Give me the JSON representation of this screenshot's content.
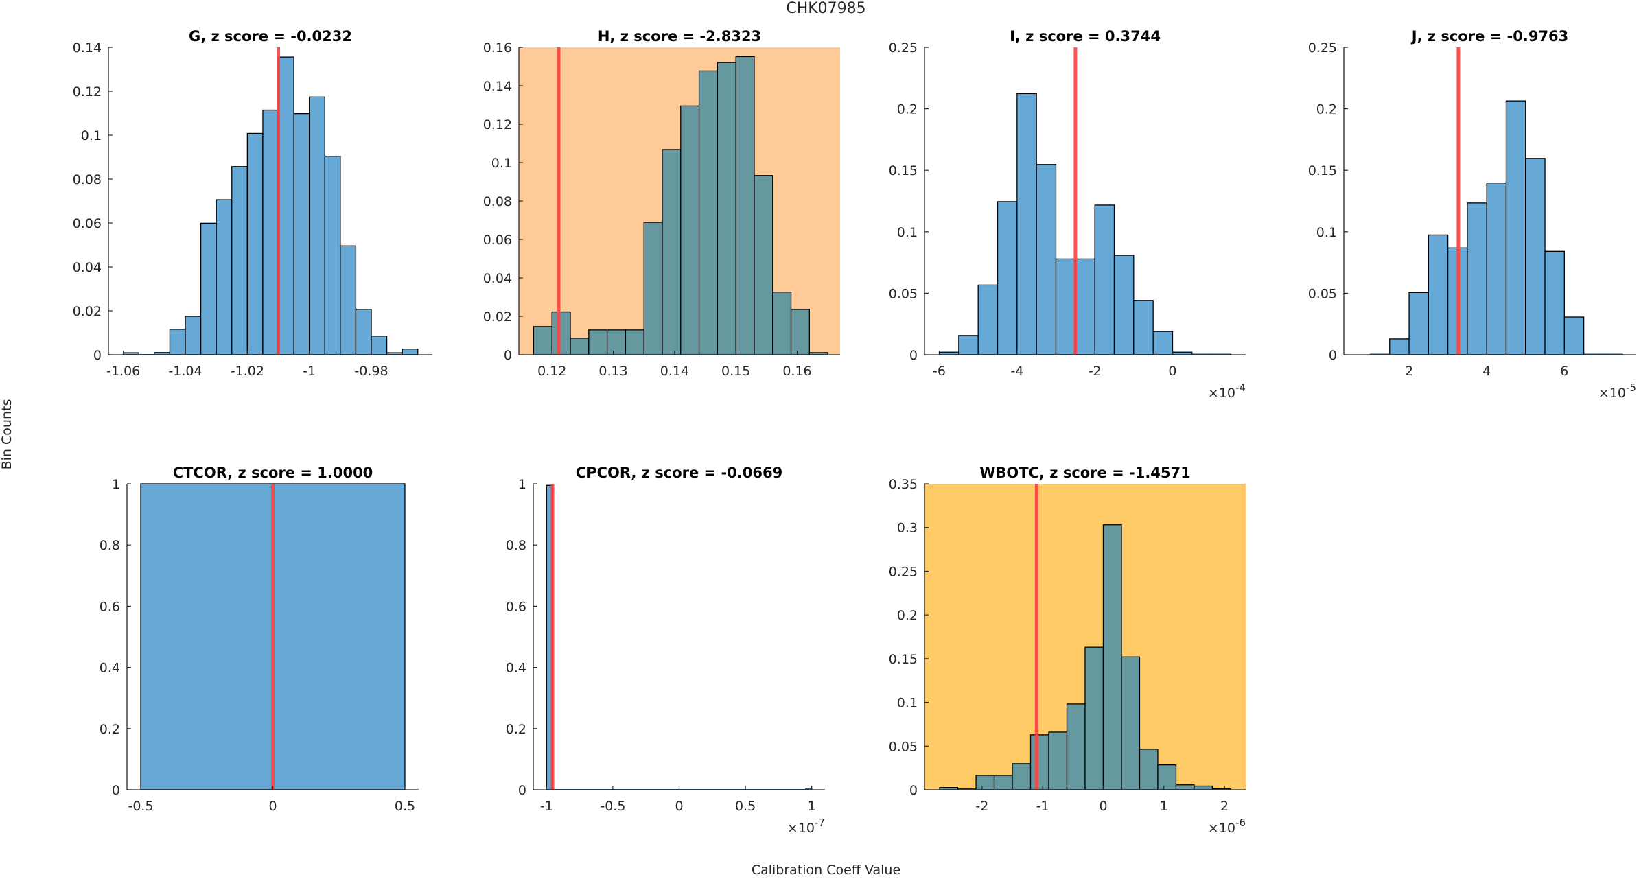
{
  "figure": {
    "suptitle": "CHK07985",
    "ylabel": "Bin Counts",
    "xlabel": "Calibration Coeff Value"
  },
  "colors": {
    "bar_fill": "#66a9d6",
    "bar_fill_on_warning": "#6698a0",
    "bar_edge": "#000000",
    "marker_line": "#ff4040",
    "bg_normal": "#ffffff",
    "bg_orange": "#fecb98",
    "bg_yellow": "#fecb66",
    "axis": "#262626"
  },
  "chart_data": [
    {
      "type": "bar",
      "title": "G, z score = -0.0232",
      "background": "bg_normal",
      "bin_edges": [
        -1.06,
        -1.055,
        -1.05,
        -1.045,
        -1.04,
        -1.035,
        -1.03,
        -1.025,
        -1.02,
        -1.015,
        -1.01,
        -1.005,
        -1.0,
        -0.995,
        -0.99,
        -0.985,
        -0.98,
        -0.975,
        -0.97,
        -0.965
      ],
      "values": [
        0.0009,
        0.0,
        0.001,
        0.0116,
        0.0175,
        0.0599,
        0.0706,
        0.0857,
        0.1008,
        0.1114,
        0.1356,
        0.1098,
        0.1174,
        0.0904,
        0.0496,
        0.0207,
        0.0085,
        0.0009,
        0.0026
      ],
      "marker_x": -1.01,
      "xlim": [
        -1.0648,
        -0.9603
      ],
      "ylim": [
        0,
        0.14
      ],
      "xticks": [
        -1.06,
        -1.04,
        -1.02,
        -1,
        -0.98
      ],
      "xtick_labels": [
        "-1.06",
        "-1.04",
        "-1.02",
        "-1",
        "-0.98"
      ],
      "yticks": [
        0,
        0.02,
        0.04,
        0.06,
        0.08,
        0.1,
        0.12,
        0.14
      ],
      "ytick_labels": [
        "0",
        "0.02",
        "0.04",
        "0.06",
        "0.08",
        "0.1",
        "0.12",
        "0.14"
      ],
      "exponent_label": "",
      "xlabel": "",
      "ylabel": ""
    },
    {
      "type": "bar",
      "title": "H, z score = -2.8323",
      "background": "bg_orange",
      "bin_edges": [
        0.117,
        0.12,
        0.123,
        0.126,
        0.129,
        0.132,
        0.135,
        0.138,
        0.141,
        0.144,
        0.147,
        0.15,
        0.153,
        0.156,
        0.159,
        0.162,
        0.165
      ],
      "values": [
        0.0147,
        0.0223,
        0.0086,
        0.0129,
        0.0129,
        0.0129,
        0.0689,
        0.1068,
        0.1295,
        0.1477,
        0.1521,
        0.1552,
        0.0933,
        0.0326,
        0.0236,
        0.0011
      ],
      "marker_x": 0.1211,
      "xlim": [
        0.1146,
        0.167
      ],
      "ylim": [
        0,
        0.16
      ],
      "xticks": [
        0.12,
        0.13,
        0.14,
        0.15,
        0.16
      ],
      "xtick_labels": [
        "0.12",
        "0.13",
        "0.14",
        "0.15",
        "0.16"
      ],
      "yticks": [
        0,
        0.02,
        0.04,
        0.06,
        0.08,
        0.1,
        0.12,
        0.14,
        0.16
      ],
      "ytick_labels": [
        "0",
        "0.02",
        "0.04",
        "0.06",
        "0.08",
        "0.1",
        "0.12",
        "0.14",
        "0.16"
      ],
      "exponent_label": "",
      "xlabel": "",
      "ylabel": ""
    },
    {
      "type": "bar",
      "title": "I, z score = 0.3744",
      "background": "bg_normal",
      "bin_edges": [
        -6.0,
        -5.5,
        -5.0,
        -4.5,
        -4.0,
        -3.5,
        -3.0,
        -2.5,
        -2.0,
        -1.5,
        -1.0,
        -0.5,
        0.0,
        0.5,
        1.0,
        1.5
      ],
      "values": [
        0.0021,
        0.0157,
        0.0567,
        0.1245,
        0.2124,
        0.1547,
        0.0779,
        0.0779,
        0.1217,
        0.0809,
        0.0442,
        0.0189,
        0.0021,
        0.0004,
        0.0004
      ],
      "marker_x": -2.5,
      "xlim": [
        -6.38,
        1.88
      ],
      "ylim": [
        0,
        0.25
      ],
      "xticks": [
        -6,
        -4,
        -2,
        0
      ],
      "xtick_labels": [
        "-6",
        "-4",
        "-2",
        "0"
      ],
      "yticks": [
        0,
        0.05,
        0.1,
        0.15,
        0.2,
        0.25
      ],
      "ytick_labels": [
        "0",
        "0.05",
        "0.1",
        "0.15",
        "0.2",
        "0.25"
      ],
      "exponent_base": "×10",
      "exponent_power": "-4",
      "xlabel": "",
      "ylabel": ""
    },
    {
      "type": "bar",
      "title": "J, z score = -0.9763",
      "background": "bg_normal",
      "bin_edges": [
        1.0,
        1.5,
        2.0,
        2.5,
        3.0,
        3.5,
        4.0,
        4.5,
        5.0,
        5.5,
        6.0,
        6.5,
        7.0,
        7.5
      ],
      "values": [
        0.0004,
        0.0129,
        0.0506,
        0.0974,
        0.0869,
        0.1234,
        0.1397,
        0.2064,
        0.1597,
        0.0841,
        0.0307,
        0.0004,
        0.0004
      ],
      "marker_x": 3.27,
      "xlim": [
        0.32,
        7.85
      ],
      "ylim": [
        0,
        0.25
      ],
      "xticks": [
        2,
        4,
        6
      ],
      "xtick_labels": [
        "2",
        "4",
        "6"
      ],
      "yticks": [
        0,
        0.05,
        0.1,
        0.15,
        0.2,
        0.25
      ],
      "ytick_labels": [
        "0",
        "0.05",
        "0.1",
        "0.15",
        "0.2",
        "0.25"
      ],
      "exponent_base": "×10",
      "exponent_power": "-5",
      "xlabel": "",
      "ylabel": ""
    },
    {
      "type": "bar",
      "title": "CTCOR, z score = 1.0000",
      "background": "bg_normal",
      "bin_edges": [
        -0.5,
        0.5
      ],
      "values": [
        1.0
      ],
      "marker_x": 0.0,
      "xlim": [
        -0.552,
        0.552
      ],
      "ylim": [
        0,
        1
      ],
      "xticks": [
        -0.5,
        0,
        0.5
      ],
      "xtick_labels": [
        "-0.5",
        "0",
        "0.5"
      ],
      "yticks": [
        0,
        0.2,
        0.4,
        0.6,
        0.8,
        1
      ],
      "ytick_labels": [
        "0",
        "0.2",
        "0.4",
        "0.6",
        "0.8",
        "1"
      ],
      "exponent_label": "",
      "xlabel": "",
      "ylabel": ""
    },
    {
      "type": "bar",
      "title": "CPCOR, z score = -0.0669",
      "background": "bg_normal",
      "bin_edges": [
        -1.0,
        -0.955,
        0.955,
        1.0
      ],
      "values": [
        0.995,
        0.0,
        0.005
      ],
      "marker_x": -0.955,
      "xlim": [
        -1.1,
        1.1
      ],
      "ylim": [
        0,
        1
      ],
      "xticks": [
        -1,
        -0.5,
        0,
        0.5,
        1
      ],
      "xtick_labels": [
        "-1",
        "-0.5",
        "0",
        "0.5",
        "1"
      ],
      "yticks": [
        0,
        0.2,
        0.4,
        0.6,
        0.8,
        1
      ],
      "ytick_labels": [
        "0",
        "0.2",
        "0.4",
        "0.6",
        "0.8",
        "1"
      ],
      "exponent_base": "×10",
      "exponent_power": "-7",
      "xlabel": "",
      "ylabel": ""
    },
    {
      "type": "bar",
      "title": "WBOTC, z score = -1.4571",
      "background": "bg_yellow",
      "bin_edges": [
        -2.7,
        -2.4,
        -2.1,
        -1.8,
        -1.5,
        -1.2,
        -0.9,
        -0.6,
        -0.3,
        0.0,
        0.3,
        0.6,
        0.9,
        1.2,
        1.5,
        1.8,
        2.1
      ],
      "values": [
        0.0026,
        0.0009,
        0.0165,
        0.0165,
        0.0299,
        0.0629,
        0.066,
        0.0982,
        0.1631,
        0.3031,
        0.152,
        0.0464,
        0.0285,
        0.0057,
        0.0043,
        0.0011
      ],
      "marker_x": -1.1,
      "xlim": [
        -2.95,
        2.35
      ],
      "ylim": [
        0,
        0.35
      ],
      "xticks": [
        -2,
        -1,
        0,
        1,
        2
      ],
      "xtick_labels": [
        "-2",
        "-1",
        "0",
        "1",
        "2"
      ],
      "yticks": [
        0,
        0.05,
        0.1,
        0.15,
        0.2,
        0.25,
        0.3,
        0.35
      ],
      "ytick_labels": [
        "0",
        "0.05",
        "0.1",
        "0.15",
        "0.2",
        "0.25",
        "0.3",
        "0.35"
      ],
      "exponent_base": "×10",
      "exponent_power": "-6",
      "xlabel": "",
      "ylabel": ""
    }
  ]
}
